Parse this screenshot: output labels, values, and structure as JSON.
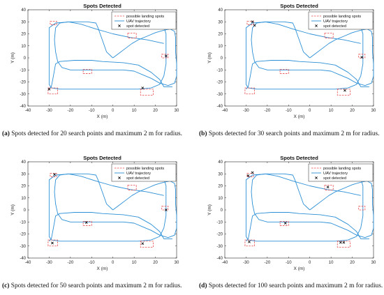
{
  "figure": {
    "captions": [
      {
        "letter": "(a)",
        "text": " Spots detected for 20 search points and maximum 2 m for radius."
      },
      {
        "letter": "(b)",
        "text": " Spots detected for 30 search points and maximum 2 m for radius."
      },
      {
        "letter": "(c)",
        "text": " Spots detected for 50 search points and maximum 2 m for radius."
      },
      {
        "letter": "(d)",
        "text": " Spots detected for 100 search points and maximum 2 m for radius."
      }
    ]
  },
  "chart_data": [
    {
      "type": "line",
      "title": "Spots Detected",
      "xlabel": "X (m)",
      "ylabel": "Y (m)",
      "xlim": [
        -40,
        30
      ],
      "ylim": [
        -40,
        40
      ],
      "xticks": [
        -40,
        -30,
        -20,
        -10,
        0,
        10,
        20,
        30
      ],
      "yticks": [
        -40,
        -30,
        -20,
        -10,
        0,
        10,
        20,
        30,
        40
      ],
      "grid": false,
      "legend_position": "top-right",
      "legend": [
        "possible landing spots",
        "UAV trajectory",
        "spot detected"
      ],
      "colors": {
        "spots": "#e8474a",
        "trajectory": "#2b8fd6",
        "detected": "#000000"
      },
      "landing_spots": [
        {
          "x": [
            -29.5,
            -26.5
          ],
          "y": [
            27.5,
            30.5
          ]
        },
        {
          "x": [
            7,
            11
          ],
          "y": [
            16.5,
            20.5
          ]
        },
        {
          "x": [
            23,
            26
          ],
          "y": [
            0,
            3
          ]
        },
        {
          "x": [
            -14,
            -10
          ],
          "y": [
            -13,
            -9.5
          ]
        },
        {
          "x": [
            13,
            19
          ],
          "y": [
            -31,
            -26
          ]
        },
        {
          "x": [
            -30.5,
            -26
          ],
          "y": [
            -30,
            -25
          ]
        }
      ],
      "series": [
        {
          "name": "spot detected",
          "x": [
            -30,
            25,
            14
          ],
          "y": [
            -26,
            1.5,
            -25
          ]
        }
      ]
    },
    {
      "type": "line",
      "title": "Spots Detected",
      "xlabel": "X (m)",
      "ylabel": "Y (m)",
      "xlim": [
        -40,
        30
      ],
      "ylim": [
        -40,
        40
      ],
      "xticks": [
        -40,
        -30,
        -20,
        -10,
        0,
        10,
        20,
        30
      ],
      "yticks": [
        -40,
        -30,
        -20,
        -10,
        0,
        10,
        20,
        30,
        40
      ],
      "grid": false,
      "legend_position": "top-right",
      "legend": [
        "possible landing spots",
        "UAV trajectory",
        "spot detected"
      ],
      "colors": {
        "spots": "#e8474a",
        "trajectory": "#2b8fd6",
        "detected": "#000000"
      },
      "landing_spots": [
        {
          "x": [
            -29.5,
            -26.5
          ],
          "y": [
            27.5,
            30.5
          ]
        },
        {
          "x": [
            7,
            11
          ],
          "y": [
            16.5,
            20.5
          ]
        },
        {
          "x": [
            23,
            26
          ],
          "y": [
            0,
            3
          ]
        },
        {
          "x": [
            -14,
            -10
          ],
          "y": [
            -13,
            -9.5
          ]
        },
        {
          "x": [
            13,
            19
          ],
          "y": [
            -31,
            -26
          ]
        },
        {
          "x": [
            -30.5,
            -26
          ],
          "y": [
            -30,
            -25
          ]
        }
      ],
      "series": [
        {
          "name": "spot detected",
          "x": [
            -27,
            -26,
            24.5,
            16.5
          ],
          "y": [
            30,
            27,
            0.5,
            -27
          ]
        }
      ]
    },
    {
      "type": "line",
      "title": "Spots Detected",
      "xlabel": "X (m)",
      "ylabel": "Y (m)",
      "xlim": [
        -40,
        30
      ],
      "ylim": [
        -40,
        40
      ],
      "xticks": [
        -40,
        -30,
        -20,
        -10,
        0,
        10,
        20,
        30
      ],
      "yticks": [
        -40,
        -30,
        -20,
        -10,
        0,
        10,
        20,
        30,
        40
      ],
      "grid": false,
      "legend_position": "top-right",
      "legend": [
        "possible landing spots",
        "UAV trajectory",
        "spot detected"
      ],
      "colors": {
        "spots": "#e8474a",
        "trajectory": "#2b8fd6",
        "detected": "#000000"
      },
      "landing_spots": [
        {
          "x": [
            -29.5,
            -26.5
          ],
          "y": [
            27.5,
            30.5
          ]
        },
        {
          "x": [
            7,
            11
          ],
          "y": [
            16.5,
            20.5
          ]
        },
        {
          "x": [
            23,
            26
          ],
          "y": [
            0,
            3
          ]
        },
        {
          "x": [
            -14,
            -10
          ],
          "y": [
            -13,
            -9.5
          ]
        },
        {
          "x": [
            13,
            19
          ],
          "y": [
            -31,
            -26
          ]
        },
        {
          "x": [
            -30.5,
            -26
          ],
          "y": [
            -30,
            -25
          ]
        }
      ],
      "series": [
        {
          "name": "spot detected",
          "x": [
            -27.5,
            -12.5,
            25,
            14,
            -28.5
          ],
          "y": [
            29.5,
            -10.5,
            0,
            -28,
            -27.5
          ]
        }
      ]
    },
    {
      "type": "line",
      "title": "Spots Detected",
      "xlabel": "X (m)",
      "ylabel": "Y (m)",
      "xlim": [
        -40,
        30
      ],
      "ylim": [
        -40,
        40
      ],
      "xticks": [
        -40,
        -30,
        -20,
        -10,
        0,
        10,
        20,
        30
      ],
      "yticks": [
        -40,
        -30,
        -20,
        -10,
        0,
        10,
        20,
        30,
        40
      ],
      "grid": false,
      "legend_position": "top-right",
      "legend": [
        "possible landing spots",
        "UAV trajectory",
        "spot detected"
      ],
      "colors": {
        "spots": "#e8474a",
        "trajectory": "#2b8fd6",
        "detected": "#000000"
      },
      "landing_spots": [
        {
          "x": [
            -29.5,
            -26.5
          ],
          "y": [
            27.5,
            30.5
          ]
        },
        {
          "x": [
            7,
            11
          ],
          "y": [
            16.5,
            20.5
          ]
        },
        {
          "x": [
            23,
            26
          ],
          "y": [
            0,
            3
          ]
        },
        {
          "x": [
            -14,
            -10
          ],
          "y": [
            -13,
            -9.5
          ]
        },
        {
          "x": [
            13,
            19
          ],
          "y": [
            -31,
            -26
          ]
        },
        {
          "x": [
            -30.5,
            -26
          ],
          "y": [
            -30,
            -25
          ]
        }
      ],
      "series": [
        {
          "name": "spot detected",
          "x": [
            -29,
            -27,
            8.5,
            -11.5,
            14.5,
            16,
            -28.5
          ],
          "y": [
            28.5,
            31,
            19,
            -11,
            -27,
            -27,
            -26.5
          ]
        }
      ]
    }
  ]
}
